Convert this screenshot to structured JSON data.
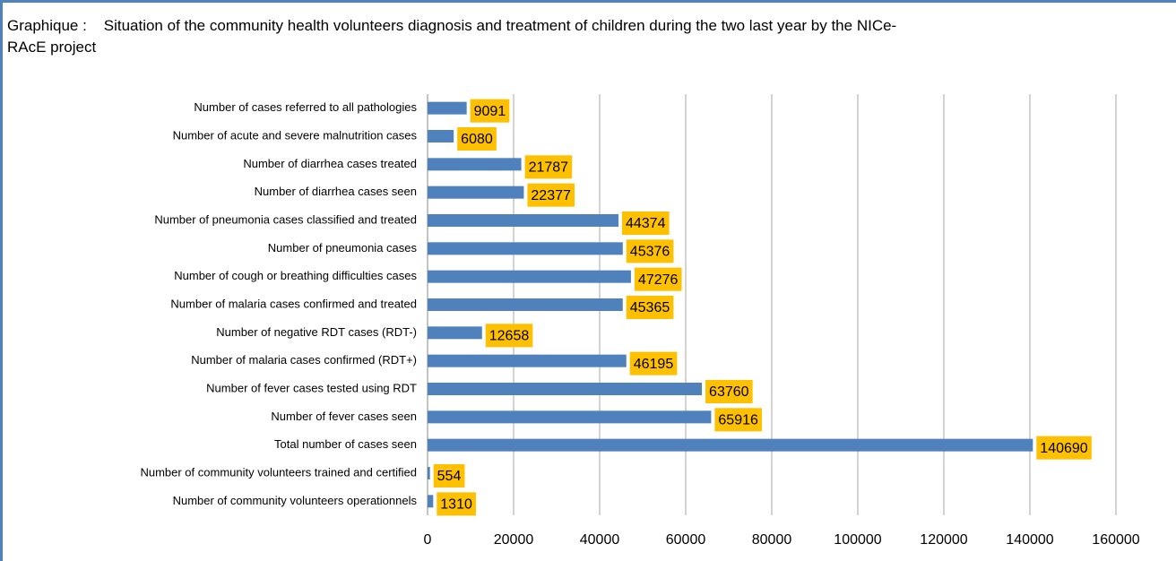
{
  "chart_data": {
    "type": "barh",
    "title": "Graphique :    Situation of the community health volunteers diagnosis and treatment of children during the two last year by the NICe-RAcE project",
    "categories": [
      "Number of cases referred to all pathologies",
      "Number of acute and severe malnutrition cases",
      "Number of diarrhea cases treated",
      "Number of diarrhea cases seen",
      "Number of pneumonia cases classified and treated",
      "Number of pneumonia cases",
      "Number of cough or breathing difficulties cases",
      "Number of malaria cases confirmed and treated",
      "Number of negative RDT cases (RDT-)",
      "Number of malaria cases confirmed (RDT+)",
      "Number of fever cases tested using RDT",
      "Number of fever cases seen",
      "Total number of cases seen",
      "Number of community volunteers trained and certified",
      "Number of community volunteers operationnels"
    ],
    "values": [
      9091,
      6080,
      21787,
      22377,
      44374,
      45376,
      47276,
      45365,
      12658,
      46195,
      63760,
      65916,
      140690,
      554,
      1310
    ],
    "color": "#4f81bd",
    "label_color": "#ffc000",
    "xlim": [
      0,
      160000
    ],
    "xticks": [
      0,
      20000,
      40000,
      60000,
      80000,
      100000,
      120000,
      140000,
      160000
    ],
    "grid": true
  }
}
